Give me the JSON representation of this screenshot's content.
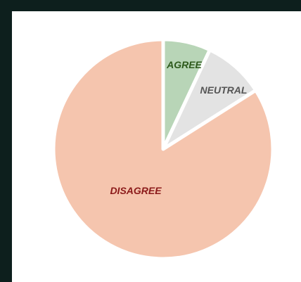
{
  "chart_data": {
    "type": "pie",
    "title": "",
    "start_angle_deg": 0,
    "direction": "clockwise",
    "slices": [
      {
        "label": "AGREE",
        "value": 7,
        "color": "#b8d5b7",
        "label_color": "#2e5a1c"
      },
      {
        "label": "NEUTRAL",
        "value": 9,
        "color": "#e3e3e3",
        "label_color": "#555555"
      },
      {
        "label": "DISAGREE",
        "value": 84,
        "color": "#f5c5ae",
        "label_color": "#8b1a1a"
      }
    ],
    "slice_separator_color": "#ffffff",
    "legend": "none"
  }
}
